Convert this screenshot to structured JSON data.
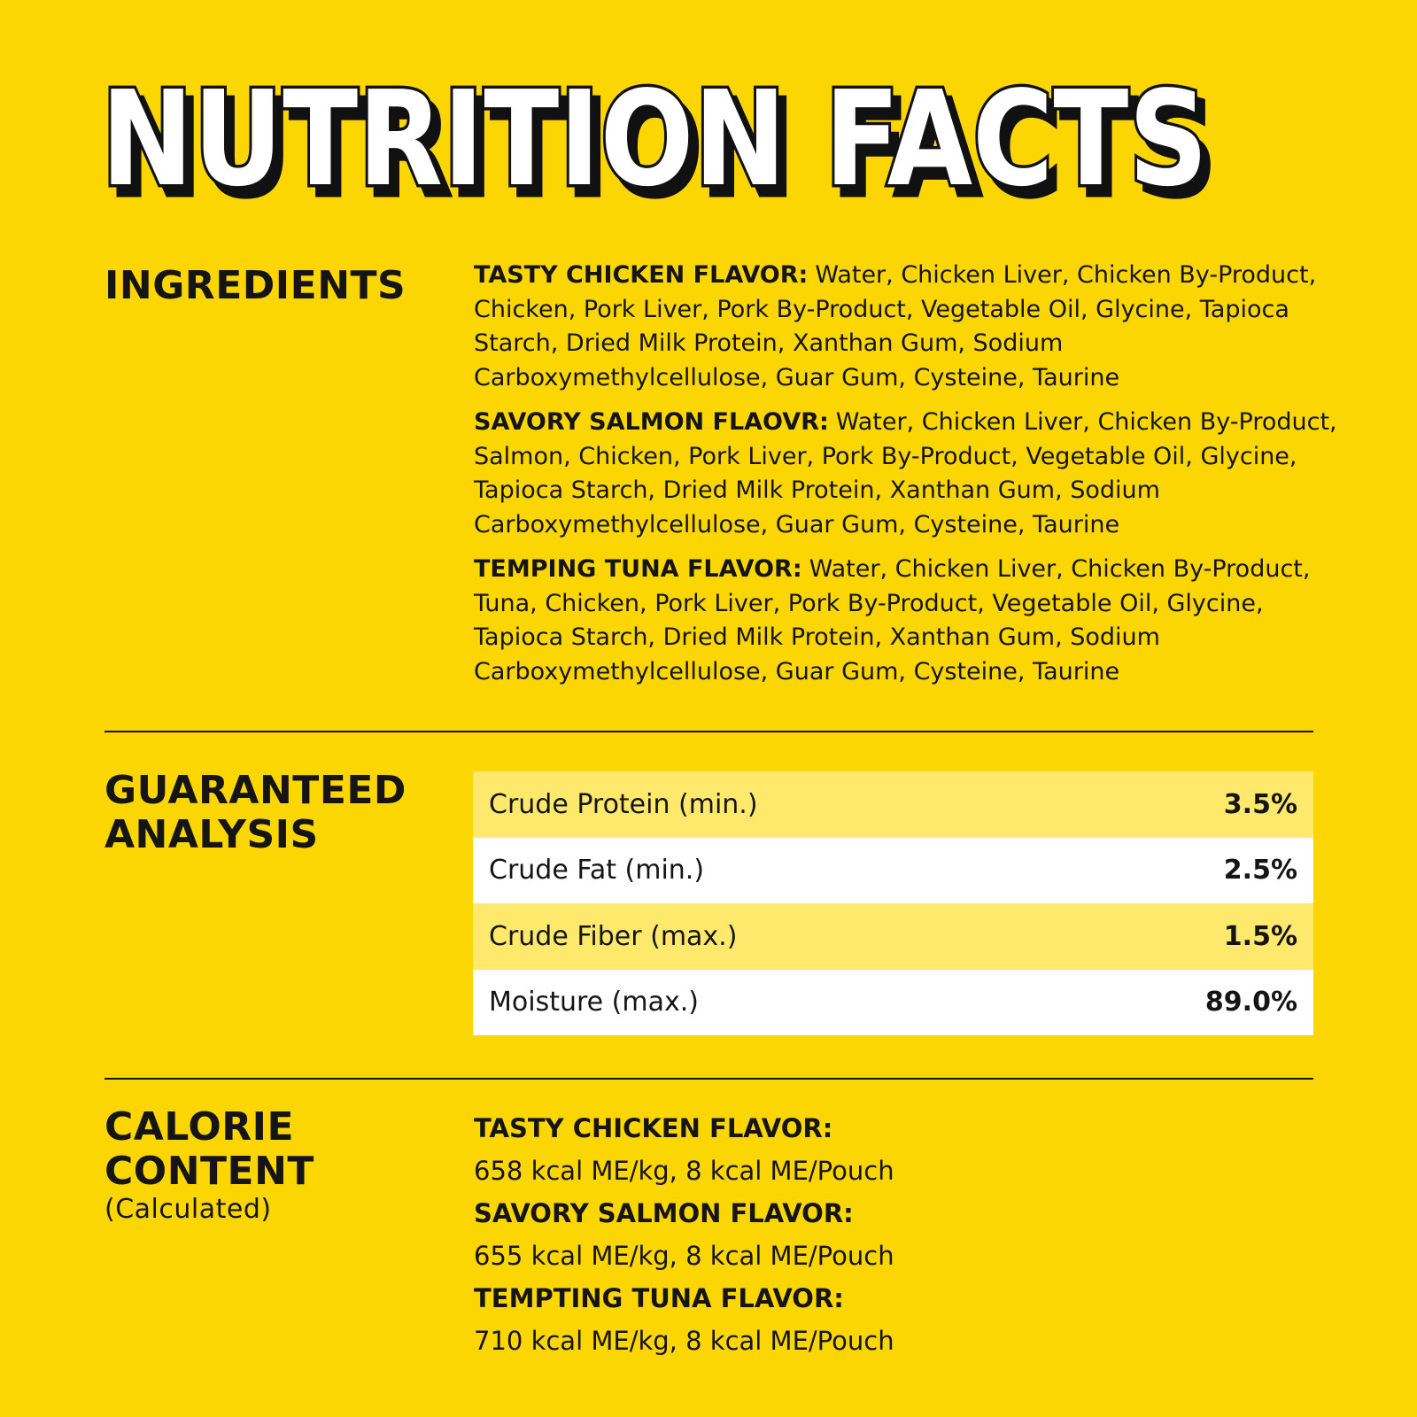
{
  "header": {
    "title": "NUTRITION FACTS"
  },
  "ingredients": {
    "heading": "INGREDIENTS",
    "entries": [
      {
        "label": "TASTY CHICKEN FLAVOR:",
        "text": "Water, Chicken Liver, Chicken By-Product, Chicken, Pork Liver, Pork By-Product, Vegetable Oil, Glycine, Tapioca Starch, Dried Milk Protein, Xanthan Gum, Sodium Carboxymethylcellulose, Guar Gum, Cysteine, Taurine"
      },
      {
        "label": "SAVORY SALMON FLAOVR:",
        "text": "Water, Chicken Liver, Chicken By-Product, Salmon, Chicken, Pork Liver, Pork By-Product, Vegetable Oil, Glycine, Tapioca Starch, Dried Milk Protein, Xanthan Gum, Sodium Carboxymethylcellulose, Guar Gum, Cysteine, Taurine"
      },
      {
        "label": "TEMPING TUNA FLAVOR:",
        "text": "Water, Chicken Liver, Chicken By-Product, Tuna, Chicken, Pork Liver, Pork By-Product, Vegetable Oil, Glycine, Tapioca Starch, Dried Milk Protein, Xanthan Gum, Sodium Carboxymethylcellulose, Guar Gum, Cysteine, Taurine"
      }
    ]
  },
  "analysis": {
    "heading": [
      "GUARANTEED",
      "ANALYSIS"
    ],
    "table": {
      "rows": [
        [
          "Crude Protein (min.)",
          "3.5%"
        ],
        [
          "Crude Fat (min.)",
          "2.5%"
        ],
        [
          "Crude Fiber (max.)",
          "1.5%"
        ],
        [
          "Moisture (max.)",
          "89.0%"
        ]
      ]
    }
  },
  "calories": {
    "heading": [
      "CALORIE",
      "CONTENT"
    ],
    "subheading": "(Calculated)",
    "entries": [
      {
        "label": "TASTY CHICKEN FLAVOR:",
        "text": "658 kcal ME/kg, 8 kcal ME/Pouch"
      },
      {
        "label": "SAVORY SALMON FLAVOR:",
        "text": "655 kcal ME/kg, 8 kcal ME/Pouch"
      },
      {
        "label": "TEMPTING TUNA FLAVOR:",
        "text": "710 kcal ME/kg, 8 kcal ME/Pouch"
      }
    ]
  }
}
